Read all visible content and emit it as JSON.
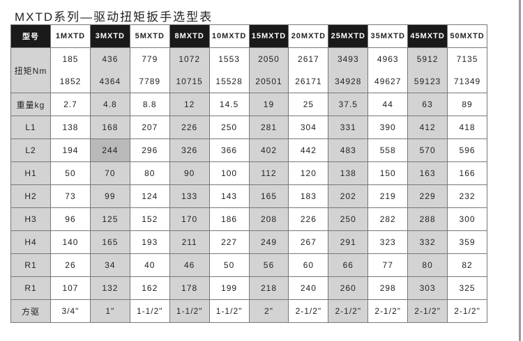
{
  "title": "MXTD系列—驱动扭矩扳手选型表",
  "header": {
    "label": "型号",
    "models": [
      "1MXTD",
      "3MXTD",
      "5MXTD",
      "8MXTD",
      "10MXTD",
      "15MXTD",
      "20MXTD",
      "25MXTD",
      "35MXTD",
      "45MXTD",
      "50MXTD"
    ]
  },
  "torque": {
    "label": "扭矩Nm",
    "min": [
      "185",
      "436",
      "779",
      "1072",
      "1553",
      "2050",
      "2617",
      "3493",
      "4963",
      "5912",
      "7135"
    ],
    "max": [
      "1852",
      "4364",
      "7789",
      "10715",
      "15528",
      "20501",
      "26171",
      "34928",
      "49627",
      "59123",
      "71349"
    ]
  },
  "rows": [
    {
      "label": "重量kg",
      "values": [
        "2.7",
        "4.8",
        "8.8",
        "12",
        "14.5",
        "19",
        "25",
        "37.5",
        "44",
        "63",
        "89"
      ]
    },
    {
      "label": "L1",
      "values": [
        "138",
        "168",
        "207",
        "226",
        "250",
        "281",
        "304",
        "331",
        "390",
        "412",
        "418"
      ]
    },
    {
      "label": "L2",
      "values": [
        "194",
        "244",
        "296",
        "326",
        "366",
        "402",
        "442",
        "483",
        "558",
        "570",
        "596"
      ]
    },
    {
      "label": "H1",
      "values": [
        "50",
        "70",
        "80",
        "90",
        "100",
        "112",
        "120",
        "138",
        "150",
        "163",
        "166"
      ]
    },
    {
      "label": "H2",
      "values": [
        "73",
        "99",
        "124",
        "133",
        "143",
        "165",
        "183",
        "202",
        "219",
        "229",
        "232"
      ]
    },
    {
      "label": "H3",
      "values": [
        "96",
        "125",
        "152",
        "170",
        "186",
        "208",
        "226",
        "250",
        "282",
        "288",
        "300"
      ]
    },
    {
      "label": "H4",
      "values": [
        "140",
        "165",
        "193",
        "211",
        "227",
        "249",
        "267",
        "291",
        "323",
        "332",
        "359"
      ]
    },
    {
      "label": "R1",
      "values": [
        "26",
        "34",
        "40",
        "46",
        "50",
        "56",
        "60",
        "66",
        "77",
        "80",
        "82"
      ]
    },
    {
      "label": "R1",
      "values": [
        "107",
        "132",
        "162",
        "178",
        "199",
        "218",
        "240",
        "260",
        "298",
        "303",
        "325"
      ]
    },
    {
      "label": "方驱",
      "values": [
        "3/4\"",
        "1\"",
        "1-1/2\"",
        "1-1/2\"",
        "1-1/2\"",
        "2\"",
        "2-1/2\"",
        "2-1/2\"",
        "2-1/2\"",
        "2-1/2\"",
        "2-1/2\""
      ]
    }
  ]
}
